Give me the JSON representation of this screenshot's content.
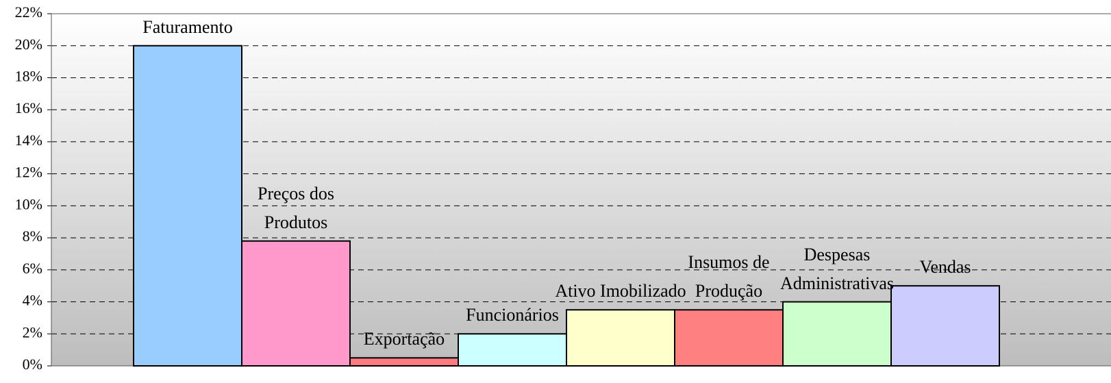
{
  "chart_data": {
    "type": "bar",
    "categories": [
      "Faturamento",
      "Preços dos Produtos",
      "Exportação",
      "Funcionários",
      "Ativo Imobilizado",
      "Insumos de Produção",
      "Despesas Administrativas",
      "Vendas"
    ],
    "values": [
      20,
      7.8,
      0.5,
      2,
      3.5,
      3.5,
      4,
      5
    ],
    "colors": [
      "#99ccff",
      "#ff99cc",
      "#ff7c80",
      "#ccffff",
      "#ffffcc",
      "#ff8080",
      "#ccffcc",
      "#ccccff"
    ],
    "ylim": [
      0,
      22
    ],
    "yticks": [
      {
        "value": 0,
        "label": "0%"
      },
      {
        "value": 2,
        "label": "2%"
      },
      {
        "value": 4,
        "label": "4%"
      },
      {
        "value": 6,
        "label": "6%"
      },
      {
        "value": 8,
        "label": "8%"
      },
      {
        "value": 10,
        "label": "10%"
      },
      {
        "value": 12,
        "label": "12%"
      },
      {
        "value": 14,
        "label": "14%"
      },
      {
        "value": 16,
        "label": "16%"
      },
      {
        "value": 18,
        "label": "18%"
      },
      {
        "value": 20,
        "label": "20%"
      },
      {
        "value": 22,
        "label": "22%"
      }
    ],
    "grid": true
  }
}
